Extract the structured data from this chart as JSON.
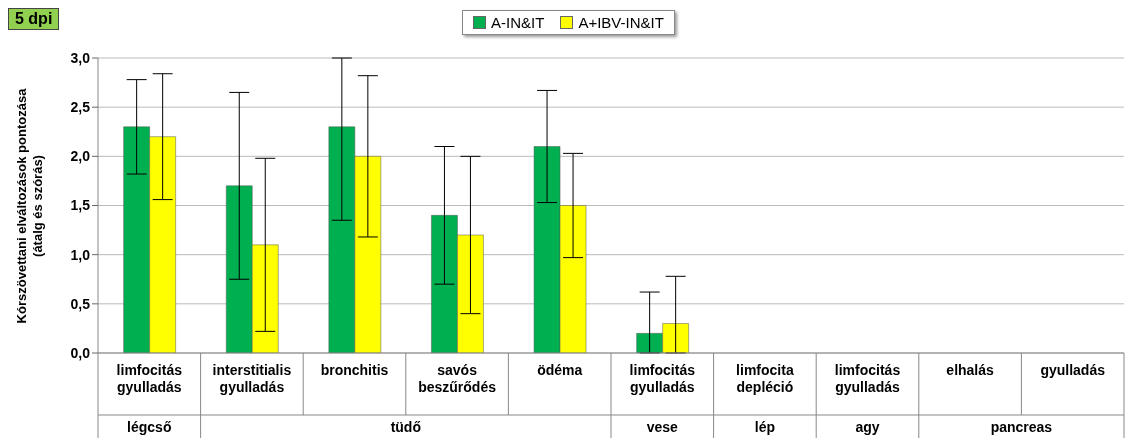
{
  "chart_data": {
    "type": "bar",
    "title": "5 dpi",
    "ylabel": "Kórszövettani elváltozások pontozása\n(átalg és szórás)",
    "categories": [
      "limfocitás gyulladás",
      "interstitialis gyulladás",
      "bronchitis",
      "savós beszűrődés",
      "ödéma",
      "limfocitás gyulladás",
      "limfocita depléció",
      "limfocitás gyulladás",
      "elhalás",
      "gyulladás"
    ],
    "series": [
      {
        "name": "A-IN&IT",
        "color": "#00b050",
        "values": [
          2.3,
          1.7,
          2.3,
          1.4,
          2.1,
          0.2,
          0,
          0,
          0,
          0
        ],
        "errors": [
          [
            1.82,
            2.78
          ],
          [
            0.75,
            2.65
          ],
          [
            1.35,
            3.0
          ],
          [
            0.7,
            2.1
          ],
          [
            1.53,
            2.67
          ],
          [
            0,
            0.62
          ],
          null,
          null,
          null,
          null
        ]
      },
      {
        "name": "A+IBV-IN&IT",
        "color": "#ffff00",
        "values": [
          2.2,
          1.1,
          2.0,
          1.2,
          1.5,
          0.3,
          0,
          0,
          0,
          0
        ],
        "errors": [
          [
            1.56,
            2.84
          ],
          [
            0.22,
            1.98
          ],
          [
            1.18,
            2.82
          ],
          [
            0.4,
            2.0
          ],
          [
            0.97,
            2.03
          ],
          [
            0,
            0.78
          ],
          null,
          null,
          null,
          null
        ]
      }
    ],
    "annotations": [
      "légcső",
      "tüdő",
      "vese",
      "lép",
      "agy",
      "pancreas"
    ],
    "ylim": [
      0,
      3
    ],
    "yticks": [
      {
        "value": 0,
        "label": "0,0"
      },
      {
        "value": 0.5,
        "label": "0,5"
      },
      {
        "value": 1,
        "label": "1,0"
      },
      {
        "value": 1.5,
        "label": "1,5"
      },
      {
        "value": 2,
        "label": "2,0"
      },
      {
        "value": 2.5,
        "label": "2,5"
      },
      {
        "value": 3,
        "label": "3,0"
      }
    ],
    "grid": "y",
    "legend": "top"
  }
}
